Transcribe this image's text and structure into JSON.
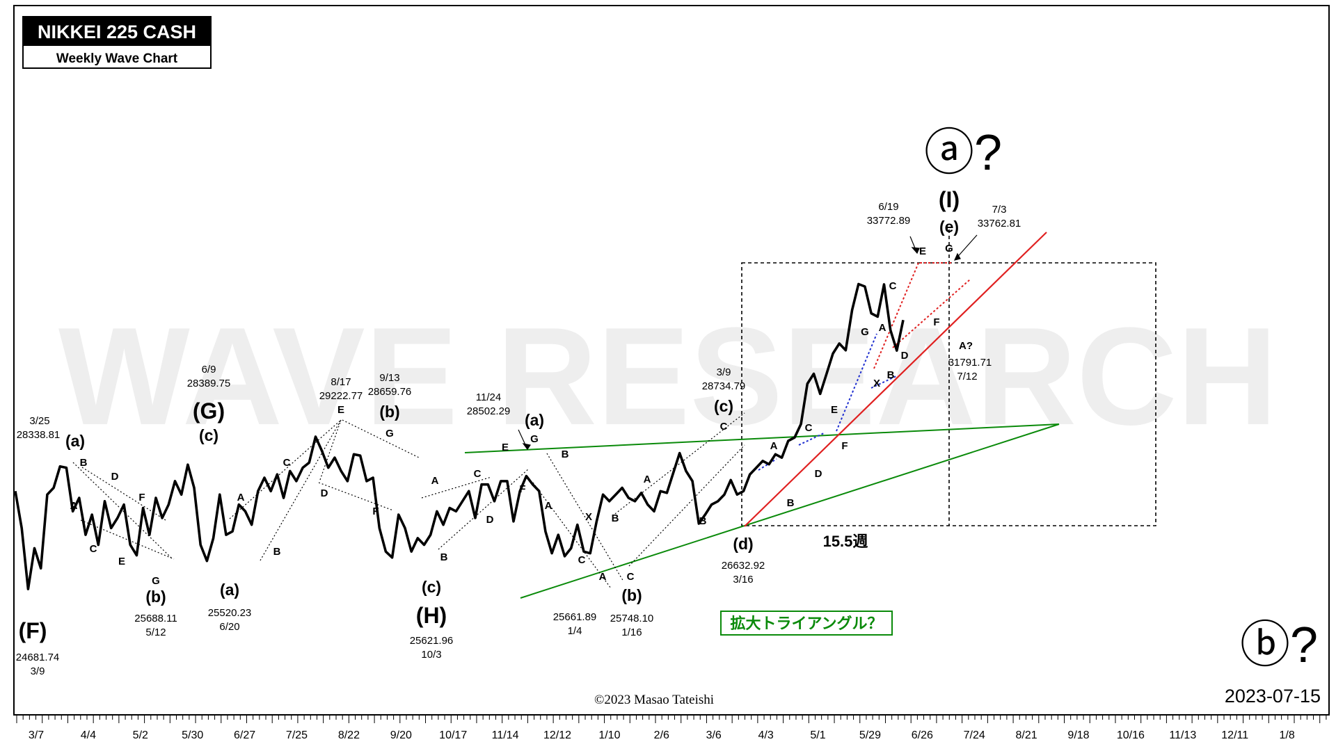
{
  "title_box": {
    "title": "NIKKEI 225 CASH",
    "subtitle": "Weekly Wave Chart"
  },
  "watermark": "WAVE RESEARCH",
  "copyright": "©2023 Masao Tateishi",
  "date_stamp": "2023-07-15",
  "box_label": "15.5週",
  "triangle_label": "拡大トライアングル？",
  "colors": {
    "price": "#000000",
    "green": "#0a8a0a",
    "red": "#e02020",
    "blue": "#1f2fd0",
    "frame": "#000000"
  },
  "chart_data": {
    "type": "line",
    "title": "NIKKEI 225 CASH",
    "subtitle": "Weekly Wave Chart",
    "x_tick_labels": [
      "3/7",
      "4/4",
      "5/2",
      "5/30",
      "6/27",
      "7/25",
      "8/22",
      "9/20",
      "10/17",
      "11/14",
      "12/12",
      "1/10",
      "2/6",
      "3/6",
      "4/3",
      "5/1",
      "5/29",
      "6/26",
      "7/24",
      "8/21",
      "9/18",
      "10/16",
      "11/13",
      "12/11",
      "1/8"
    ],
    "weekly_close_estimates": [
      27600,
      26500,
      24682,
      25900,
      25300,
      27500,
      27700,
      28339,
      28300,
      27000,
      27400,
      26300,
      26900,
      26000,
      27300,
      26500,
      26800,
      27200,
      26000,
      25688,
      27100,
      26300,
      27400,
      26800,
      27200,
      27900,
      27500,
      28390,
      27700,
      26000,
      25520,
      26200,
      27500,
      26300,
      26400,
      27200,
      27000,
      26600,
      27600,
      28000,
      27600,
      28100,
      27400,
      28200,
      27900,
      28300,
      28450,
      29223,
      28800,
      28300,
      28600,
      28200,
      27900,
      28700,
      28660,
      27900,
      28000,
      26500,
      25800,
      25622,
      26900,
      26500,
      25800,
      26200,
      26000,
      26300,
      27000,
      26600,
      27100,
      27000,
      27300,
      27600,
      26800,
      27800,
      27800,
      27300,
      27900,
      27900,
      26700,
      27600,
      28050,
      27800,
      27600,
      26400,
      25750,
      26300,
      25662,
      25900,
      26600,
      25800,
      25748,
      26700,
      27500,
      27300,
      27500,
      27700,
      27400,
      27300,
      27550,
      27200,
      27000,
      27600,
      27550,
      28140,
      28735,
      28200,
      27900,
      26632,
      26900,
      27200,
      27300,
      27500,
      27930,
      27500,
      27600,
      28100,
      28300,
      28500,
      28400,
      28700,
      28600,
      29100,
      29200,
      29600,
      30800,
      31100,
      30500,
      31100,
      31700,
      32000,
      31800,
      33000,
      33773,
      33700,
      32900,
      32800,
      33763,
      32400,
      31792,
      32700
    ]
  },
  "wave_labels": {
    "F_major": "(F)",
    "F_date": "3/9",
    "F_price": "24681.74",
    "G_major": "(G)",
    "G_date": "6/9",
    "G_price": "28389.75",
    "H_major": "(H)",
    "H_date": "10/3",
    "H_price": "25621.96",
    "a_minor_1": "(a)",
    "a_minor_1_date": "3/25",
    "a_minor_1_price": "28338.81",
    "b_minor_1": "(b)",
    "b_minor_1_price": "25688.11",
    "b_minor_1_date": "5/12",
    "c_minor_1": "(c)",
    "a_minor_2": "(a)",
    "a_minor_2_price": "25520.23",
    "a_minor_2_date": "6/20",
    "E_8_17_date": "8/17",
    "E_8_17_price": "29222.77",
    "b_minor_2": "(b)",
    "b_minor_2_date": "9/13",
    "b_minor_2_price": "28659.76",
    "c_minor_2": "(c)",
    "a_minor_3": "(a)",
    "a_minor_3_date": "11/24",
    "a_minor_3_price": "28502.29",
    "low_1_4_price": "25661.89",
    "low_1_4_date": "1/4",
    "b_minor_3": "(b)",
    "b_minor_3_price": "25748.10",
    "b_minor_3_date": "1/16",
    "c_minor_3": "(c)",
    "c_minor_3_date": "3/9",
    "c_minor_3_price": "28734.79",
    "d_minor": "(d)",
    "d_minor_price": "26632.92",
    "d_minor_date": "3/16",
    "e_minor": "(e)",
    "I_major": "(I)",
    "circled_a": "ⓐ?",
    "circled_b": "ⓑ?",
    "peak_6_19_date": "6/19",
    "peak_6_19_price": "33772.89",
    "peak_7_3_date": "7/3",
    "peak_7_3_price": "33762.81",
    "A_q": "A?",
    "A_q_price": "31791.71",
    "A_q_date": "7/12",
    "A": "A",
    "B": "B",
    "C": "C",
    "D": "D",
    "E": "E",
    "F": "F",
    "G": "G",
    "X": "X"
  }
}
